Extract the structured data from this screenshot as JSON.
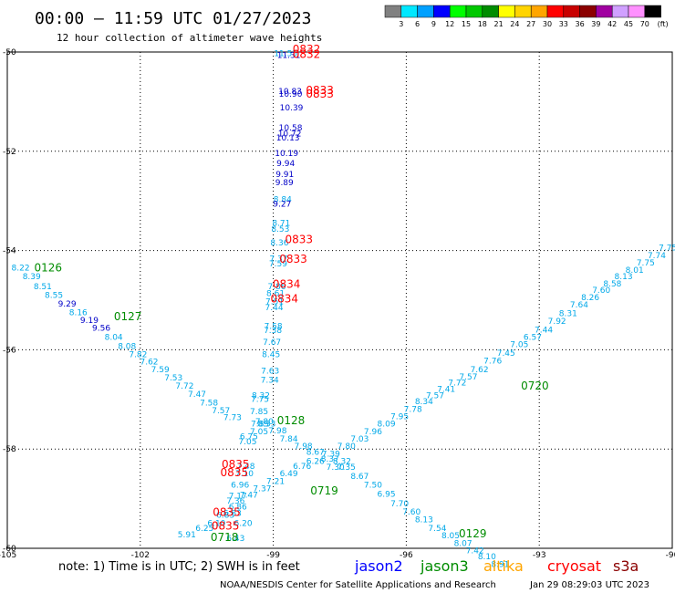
{
  "header": {
    "title": "00:00 – 11:59 UTC 01/27/2023",
    "subtitle": "12 hour collection of altimeter wave heights"
  },
  "colorbar": {
    "unit": "(ft)",
    "labels": [
      "3",
      "6",
      "9",
      "12",
      "15",
      "18",
      "21",
      "24",
      "27",
      "30",
      "33",
      "36",
      "39",
      "42",
      "45",
      "70"
    ],
    "colors": [
      "#808080",
      "#00e8ff",
      "#00a0ff",
      "#0000ff",
      "#00ff00",
      "#00c800",
      "#008c00",
      "#ffff00",
      "#ffd400",
      "#ffa500",
      "#ff0000",
      "#c80000",
      "#8b0000",
      "#a000a0",
      "#d0a0ff",
      "#ff90ff",
      "#000000"
    ]
  },
  "footer": {
    "note": "note: 1) Time is in UTC; 2) SWH is in feet",
    "satellites": [
      {
        "name": "jason2",
        "color": "#0000ff"
      },
      {
        "name": "jason3",
        "color": "#008c00"
      },
      {
        "name": "altika",
        "color": "#ffa500"
      },
      {
        "name": "cryosat",
        "color": "#ff0000"
      },
      {
        "name": "s3a",
        "color": "#8b0000"
      }
    ],
    "credit_left": "NOAA/NESDIS Center for Satellite Applications and Research",
    "credit_right": "Jan 29 08:29:03 UTC 2023"
  },
  "chart_data": {
    "type": "scatter",
    "xlim": [
      -105,
      -90
    ],
    "ylim": [
      -60,
      -50
    ],
    "xticks": [
      -105,
      -102,
      -99,
      -96,
      -93,
      -90
    ],
    "yticks": [
      -50,
      -52,
      -54,
      -56,
      -58,
      -60
    ],
    "grid": true,
    "point_colors": {
      "light": "#00a8e8",
      "dark": "#0000c8"
    },
    "points": [
      {
        "x": -98.72,
        "y": -50.08,
        "v": "11.55",
        "c": "light"
      },
      {
        "x": -98.65,
        "y": -50.12,
        "v": "11.31",
        "c": "dark"
      },
      {
        "x": -98.62,
        "y": -50.85,
        "v": "10.83",
        "c": "dark"
      },
      {
        "x": -98.61,
        "y": -50.9,
        "v": "10.90",
        "c": "dark"
      },
      {
        "x": -98.59,
        "y": -51.18,
        "v": "10.39",
        "c": "dark"
      },
      {
        "x": -98.61,
        "y": -51.58,
        "v": "10.58",
        "c": "dark"
      },
      {
        "x": -98.63,
        "y": -51.7,
        "v": "10.72",
        "c": "dark"
      },
      {
        "x": -98.67,
        "y": -51.78,
        "v": "10.13",
        "c": "dark"
      },
      {
        "x": -98.7,
        "y": -52.1,
        "v": "10.19",
        "c": "dark"
      },
      {
        "x": -98.72,
        "y": -52.3,
        "v": "9.94",
        "c": "dark"
      },
      {
        "x": -98.74,
        "y": -52.52,
        "v": "9.91",
        "c": "dark"
      },
      {
        "x": -98.75,
        "y": -52.68,
        "v": "9.89",
        "c": "dark"
      },
      {
        "x": -98.79,
        "y": -53.02,
        "v": "8.84",
        "c": "light"
      },
      {
        "x": -98.8,
        "y": -53.12,
        "v": "9.27",
        "c": "dark"
      },
      {
        "x": -98.82,
        "y": -53.5,
        "v": "8.71",
        "c": "light"
      },
      {
        "x": -98.84,
        "y": -53.62,
        "v": "8.53",
        "c": "light"
      },
      {
        "x": -98.86,
        "y": -53.9,
        "v": "8.36",
        "c": "light"
      },
      {
        "x": -98.88,
        "y": -54.22,
        "v": "7.37",
        "c": "light"
      },
      {
        "x": -98.89,
        "y": -54.32,
        "v": "7.59",
        "c": "light"
      },
      {
        "x": -98.92,
        "y": -54.78,
        "v": "7.86",
        "c": "light"
      },
      {
        "x": -98.95,
        "y": -54.92,
        "v": "8.61",
        "c": "light"
      },
      {
        "x": -98.97,
        "y": -55.08,
        "v": "7.51",
        "c": "light"
      },
      {
        "x": -98.98,
        "y": -55.2,
        "v": "7.44",
        "c": "light"
      },
      {
        "x": -99.0,
        "y": -55.58,
        "v": "7.58",
        "c": "light"
      },
      {
        "x": -99.01,
        "y": -55.66,
        "v": "7.38",
        "c": "light"
      },
      {
        "x": -99.03,
        "y": -55.9,
        "v": "7.67",
        "c": "light"
      },
      {
        "x": -99.05,
        "y": -56.15,
        "v": "8.45",
        "c": "light"
      },
      {
        "x": -99.07,
        "y": -56.48,
        "v": "7.63",
        "c": "light"
      },
      {
        "x": -99.08,
        "y": -56.66,
        "v": "7.34",
        "c": "light"
      },
      {
        "x": -99.28,
        "y": -56.98,
        "v": "8.32",
        "c": "light"
      },
      {
        "x": -99.3,
        "y": -57.05,
        "v": "7.75",
        "c": "light"
      },
      {
        "x": -99.32,
        "y": -57.3,
        "v": "7.85",
        "c": "light"
      },
      {
        "x": -99.2,
        "y": -57.5,
        "v": "7.80",
        "c": "light"
      },
      {
        "x": -99.3,
        "y": -57.55,
        "v": "7.85",
        "c": "light"
      },
      {
        "x": -99.15,
        "y": -57.55,
        "v": "8.33",
        "c": "light"
      },
      {
        "x": -99.32,
        "y": -57.7,
        "v": "7.05",
        "c": "light"
      },
      {
        "x": -98.9,
        "y": -57.68,
        "v": "7.98",
        "c": "light"
      },
      {
        "x": -98.65,
        "y": -57.85,
        "v": "7.84",
        "c": "light"
      },
      {
        "x": -98.32,
        "y": -58.0,
        "v": "7.98",
        "c": "light"
      },
      {
        "x": -98.05,
        "y": -58.12,
        "v": "8.67",
        "c": "light"
      },
      {
        "x": -97.72,
        "y": -58.25,
        "v": "8.37",
        "c": "light"
      },
      {
        "x": -97.45,
        "y": -58.3,
        "v": "8.32",
        "c": "light"
      },
      {
        "x": -97.6,
        "y": -58.42,
        "v": "7.30",
        "c": "light"
      },
      {
        "x": -97.35,
        "y": -58.42,
        "v": "7.35",
        "c": "light"
      },
      {
        "x": -97.05,
        "y": -58.6,
        "v": "8.67",
        "c": "light"
      },
      {
        "x": -96.75,
        "y": -58.78,
        "v": "7.50",
        "c": "light"
      },
      {
        "x": -96.45,
        "y": -58.96,
        "v": "6.95",
        "c": "light"
      },
      {
        "x": -96.15,
        "y": -59.15,
        "v": "7.70",
        "c": "light"
      },
      {
        "x": -95.88,
        "y": -59.32,
        "v": "7.60",
        "c": "light"
      },
      {
        "x": -95.6,
        "y": -59.48,
        "v": "8.13",
        "c": "light"
      },
      {
        "x": -95.3,
        "y": -59.65,
        "v": "7.54",
        "c": "light"
      },
      {
        "x": -95.0,
        "y": -59.8,
        "v": "8.05",
        "c": "light"
      },
      {
        "x": -94.72,
        "y": -59.95,
        "v": "8.07",
        "c": "light"
      },
      {
        "x": -94.45,
        "y": -60.1,
        "v": "7.42",
        "c": "light"
      },
      {
        "x": -94.18,
        "y": -60.22,
        "v": "8.10",
        "c": "light"
      },
      {
        "x": -93.88,
        "y": -60.38,
        "v": "8.91",
        "c": "light"
      },
      {
        "x": -104.7,
        "y": -54.4,
        "v": "8.22",
        "c": "light"
      },
      {
        "x": -104.45,
        "y": -54.58,
        "v": "8.39",
        "c": "light"
      },
      {
        "x": -104.2,
        "y": -54.78,
        "v": "8.51",
        "c": "light"
      },
      {
        "x": -103.95,
        "y": -54.95,
        "v": "8.55",
        "c": "light"
      },
      {
        "x": -103.65,
        "y": -55.13,
        "v": "9.29",
        "c": "dark"
      },
      {
        "x": -103.4,
        "y": -55.3,
        "v": "8.16",
        "c": "light"
      },
      {
        "x": -103.15,
        "y": -55.46,
        "v": "9.19",
        "c": "dark"
      },
      {
        "x": -102.88,
        "y": -55.62,
        "v": "9.56",
        "c": "dark"
      },
      {
        "x": -102.6,
        "y": -55.8,
        "v": "8.04",
        "c": "light"
      },
      {
        "x": -102.3,
        "y": -55.98,
        "v": "8.08",
        "c": "light"
      },
      {
        "x": -102.05,
        "y": -56.15,
        "v": "7.82",
        "c": "light"
      },
      {
        "x": -101.8,
        "y": -56.3,
        "v": "7.62",
        "c": "light"
      },
      {
        "x": -101.55,
        "y": -56.45,
        "v": "7.59",
        "c": "light"
      },
      {
        "x": -101.25,
        "y": -56.62,
        "v": "7.53",
        "c": "light"
      },
      {
        "x": -101.0,
        "y": -56.78,
        "v": "7.72",
        "c": "light"
      },
      {
        "x": -100.72,
        "y": -56.95,
        "v": "7.47",
        "c": "light"
      },
      {
        "x": -100.45,
        "y": -57.12,
        "v": "7.58",
        "c": "light"
      },
      {
        "x": -100.18,
        "y": -57.28,
        "v": "7.57",
        "c": "light"
      },
      {
        "x": -99.92,
        "y": -57.42,
        "v": "7.73",
        "c": "light"
      },
      {
        "x": -99.55,
        "y": -57.8,
        "v": "6.75",
        "c": "light"
      },
      {
        "x": -99.58,
        "y": -57.9,
        "v": "7.05",
        "c": "light"
      },
      {
        "x": -99.62,
        "y": -58.4,
        "v": "7.48",
        "c": "light"
      },
      {
        "x": -99.65,
        "y": -58.55,
        "v": "7.10",
        "c": "light"
      },
      {
        "x": -99.75,
        "y": -58.78,
        "v": "6.96",
        "c": "light"
      },
      {
        "x": -99.8,
        "y": -59.0,
        "v": "7.17",
        "c": "light"
      },
      {
        "x": -99.85,
        "y": -59.1,
        "v": "7.36",
        "c": "light"
      },
      {
        "x": -99.8,
        "y": -59.22,
        "v": "6.86",
        "c": "light"
      },
      {
        "x": -99.92,
        "y": -59.35,
        "v": "6.83",
        "c": "light"
      },
      {
        "x": -100.08,
        "y": -59.38,
        "v": "6.83",
        "c": "light"
      },
      {
        "x": -100.28,
        "y": -59.55,
        "v": "6.10",
        "c": "light"
      },
      {
        "x": -99.68,
        "y": -59.55,
        "v": "6.20",
        "c": "light"
      },
      {
        "x": -100.55,
        "y": -59.65,
        "v": "6.25",
        "c": "light"
      },
      {
        "x": -100.95,
        "y": -59.78,
        "v": "5.91",
        "c": "light"
      },
      {
        "x": -99.85,
        "y": -59.85,
        "v": "6.43",
        "c": "light"
      },
      {
        "x": -99.55,
        "y": -58.98,
        "v": "7.47",
        "c": "light"
      },
      {
        "x": -99.25,
        "y": -58.85,
        "v": "7.37",
        "c": "light"
      },
      {
        "x": -98.95,
        "y": -58.7,
        "v": "7.21",
        "c": "light"
      },
      {
        "x": -98.65,
        "y": -58.55,
        "v": "6.49",
        "c": "light"
      },
      {
        "x": -98.35,
        "y": -58.4,
        "v": "6.76",
        "c": "light"
      },
      {
        "x": -98.05,
        "y": -58.3,
        "v": "6.26",
        "c": "light"
      },
      {
        "x": -97.7,
        "y": -58.15,
        "v": "7.39",
        "c": "light"
      },
      {
        "x": -97.35,
        "y": -58.0,
        "v": "7.80",
        "c": "light"
      },
      {
        "x": -97.05,
        "y": -57.85,
        "v": "7.03",
        "c": "light"
      },
      {
        "x": -96.75,
        "y": -57.7,
        "v": "7.96",
        "c": "light"
      },
      {
        "x": -96.45,
        "y": -57.55,
        "v": "8.09",
        "c": "light"
      },
      {
        "x": -96.15,
        "y": -57.4,
        "v": "7.95",
        "c": "light"
      },
      {
        "x": -95.85,
        "y": -57.25,
        "v": "7.78",
        "c": "light"
      },
      {
        "x": -95.6,
        "y": -57.1,
        "v": "8.34",
        "c": "light"
      },
      {
        "x": -95.35,
        "y": -56.98,
        "v": "7.57",
        "c": "light"
      },
      {
        "x": -95.1,
        "y": -56.85,
        "v": "7.41",
        "c": "light"
      },
      {
        "x": -94.85,
        "y": -56.72,
        "v": "7.72",
        "c": "light"
      },
      {
        "x": -94.6,
        "y": -56.6,
        "v": "7.57",
        "c": "light"
      },
      {
        "x": -94.35,
        "y": -56.45,
        "v": "7.62",
        "c": "light"
      },
      {
        "x": -94.05,
        "y": -56.28,
        "v": "7.76",
        "c": "light"
      },
      {
        "x": -93.75,
        "y": -56.12,
        "v": "7.45",
        "c": "light"
      },
      {
        "x": -93.45,
        "y": -55.95,
        "v": "7.05",
        "c": "light"
      },
      {
        "x": -93.15,
        "y": -55.8,
        "v": "6.57",
        "c": "light"
      },
      {
        "x": -92.9,
        "y": -55.65,
        "v": "7.44",
        "c": "light"
      },
      {
        "x": -92.6,
        "y": -55.48,
        "v": "7.92",
        "c": "light"
      },
      {
        "x": -92.35,
        "y": -55.32,
        "v": "8.31",
        "c": "light"
      },
      {
        "x": -92.1,
        "y": -55.15,
        "v": "7.64",
        "c": "light"
      },
      {
        "x": -91.85,
        "y": -55.0,
        "v": "8.26",
        "c": "light"
      },
      {
        "x": -91.6,
        "y": -54.85,
        "v": "7.60",
        "c": "light"
      },
      {
        "x": -91.35,
        "y": -54.72,
        "v": "8.58",
        "c": "light"
      },
      {
        "x": -91.1,
        "y": -54.58,
        "v": "8.13",
        "c": "light"
      },
      {
        "x": -90.85,
        "y": -54.45,
        "v": "8.01",
        "c": "light"
      },
      {
        "x": -90.6,
        "y": -54.3,
        "v": "7.75",
        "c": "light"
      },
      {
        "x": -90.35,
        "y": -54.15,
        "v": "7.74",
        "c": "light"
      },
      {
        "x": -90.1,
        "y": -54.0,
        "v": "7.75",
        "c": "light"
      }
    ],
    "pass_times": [
      {
        "x": -98.25,
        "y": -50.02,
        "t": "0832",
        "color": "#ff0000"
      },
      {
        "x": -98.25,
        "y": -50.12,
        "t": "0832",
        "color": "#ff0000"
      },
      {
        "x": -97.95,
        "y": -50.85,
        "t": "0833",
        "color": "#ff0000"
      },
      {
        "x": -97.95,
        "y": -50.92,
        "t": "0833",
        "color": "#ff0000"
      },
      {
        "x": -98.42,
        "y": -53.85,
        "t": "0833",
        "color": "#ff0000"
      },
      {
        "x": -98.55,
        "y": -54.25,
        "t": "0833",
        "color": "#ff0000"
      },
      {
        "x": -98.7,
        "y": -54.75,
        "t": "0834",
        "color": "#ff0000"
      },
      {
        "x": -98.75,
        "y": -55.05,
        "t": "0834",
        "color": "#ff0000"
      },
      {
        "x": -99.85,
        "y": -58.38,
        "t": "0835",
        "color": "#ff0000"
      },
      {
        "x": -99.88,
        "y": -58.55,
        "t": "0835",
        "color": "#ff0000"
      },
      {
        "x": -100.05,
        "y": -59.35,
        "t": "0835",
        "color": "#ff0000"
      },
      {
        "x": -100.08,
        "y": -59.62,
        "t": "0835",
        "color": "#ff0000"
      },
      {
        "x": -104.08,
        "y": -54.42,
        "t": "0126",
        "color": "#008c00"
      },
      {
        "x": -102.28,
        "y": -55.4,
        "t": "0127",
        "color": "#008c00"
      },
      {
        "x": -98.6,
        "y": -57.5,
        "t": "0128",
        "color": "#008c00"
      },
      {
        "x": -97.85,
        "y": -58.92,
        "t": "0719",
        "color": "#008c00"
      },
      {
        "x": -93.1,
        "y": -56.8,
        "t": "0720",
        "color": "#008c00"
      },
      {
        "x": -94.5,
        "y": -59.78,
        "t": "0129",
        "color": "#008c00"
      },
      {
        "x": -100.1,
        "y": -59.85,
        "t": "0718",
        "color": "#008c00"
      }
    ]
  }
}
